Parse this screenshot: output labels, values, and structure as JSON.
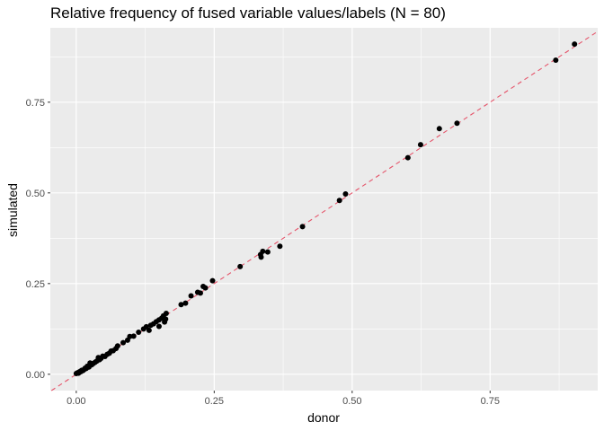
{
  "chart_data": {
    "type": "scatter",
    "title": "Relative frequency of fused variable values/labels (N = 80)",
    "xlabel": "donor",
    "ylabel": "simulated",
    "xlim": [
      -0.047,
      0.945
    ],
    "ylim": [
      -0.045,
      0.955
    ],
    "x_ticks": [
      0.0,
      0.25,
      0.5,
      0.75
    ],
    "x_tick_labels": [
      "0.00",
      "0.25",
      "0.50",
      "0.75"
    ],
    "y_ticks": [
      0.0,
      0.25,
      0.5,
      0.75
    ],
    "y_tick_labels": [
      "0.00",
      "0.25",
      "0.50",
      "0.75"
    ],
    "grid": true,
    "background": "ggplot-grey",
    "reference_line": {
      "type": "identity",
      "slope": 1,
      "intercept": 0,
      "style": "dashed",
      "color": "#e5546a"
    },
    "point_color": "#000000",
    "points": [
      {
        "x": 0.0,
        "y": 0.002
      },
      {
        "x": 0.002,
        "y": 0.004
      },
      {
        "x": 0.004,
        "y": 0.003
      },
      {
        "x": 0.005,
        "y": 0.006
      },
      {
        "x": 0.007,
        "y": 0.008
      },
      {
        "x": 0.008,
        "y": 0.007
      },
      {
        "x": 0.01,
        "y": 0.011
      },
      {
        "x": 0.012,
        "y": 0.01
      },
      {
        "x": 0.014,
        "y": 0.013
      },
      {
        "x": 0.016,
        "y": 0.017
      },
      {
        "x": 0.018,
        "y": 0.016
      },
      {
        "x": 0.02,
        "y": 0.022
      },
      {
        "x": 0.023,
        "y": 0.02
      },
      {
        "x": 0.025,
        "y": 0.031
      },
      {
        "x": 0.028,
        "y": 0.026
      },
      {
        "x": 0.031,
        "y": 0.03
      },
      {
        "x": 0.034,
        "y": 0.033
      },
      {
        "x": 0.037,
        "y": 0.036
      },
      {
        "x": 0.04,
        "y": 0.046
      },
      {
        "x": 0.042,
        "y": 0.04
      },
      {
        "x": 0.045,
        "y": 0.044
      },
      {
        "x": 0.048,
        "y": 0.05
      },
      {
        "x": 0.052,
        "y": 0.049
      },
      {
        "x": 0.056,
        "y": 0.055
      },
      {
        "x": 0.06,
        "y": 0.058
      },
      {
        "x": 0.063,
        "y": 0.064
      },
      {
        "x": 0.067,
        "y": 0.065
      },
      {
        "x": 0.072,
        "y": 0.071
      },
      {
        "x": 0.075,
        "y": 0.078
      },
      {
        "x": 0.085,
        "y": 0.087
      },
      {
        "x": 0.093,
        "y": 0.094
      },
      {
        "x": 0.097,
        "y": 0.104
      },
      {
        "x": 0.104,
        "y": 0.105
      },
      {
        "x": 0.113,
        "y": 0.116
      },
      {
        "x": 0.122,
        "y": 0.125
      },
      {
        "x": 0.127,
        "y": 0.131
      },
      {
        "x": 0.132,
        "y": 0.121
      },
      {
        "x": 0.135,
        "y": 0.135
      },
      {
        "x": 0.14,
        "y": 0.139
      },
      {
        "x": 0.145,
        "y": 0.145
      },
      {
        "x": 0.15,
        "y": 0.132
      },
      {
        "x": 0.15,
        "y": 0.15
      },
      {
        "x": 0.155,
        "y": 0.155
      },
      {
        "x": 0.158,
        "y": 0.161
      },
      {
        "x": 0.16,
        "y": 0.144
      },
      {
        "x": 0.162,
        "y": 0.152
      },
      {
        "x": 0.163,
        "y": 0.168
      },
      {
        "x": 0.19,
        "y": 0.192
      },
      {
        "x": 0.198,
        "y": 0.196
      },
      {
        "x": 0.208,
        "y": 0.216
      },
      {
        "x": 0.22,
        "y": 0.226
      },
      {
        "x": 0.225,
        "y": 0.224
      },
      {
        "x": 0.23,
        "y": 0.242
      },
      {
        "x": 0.234,
        "y": 0.238
      },
      {
        "x": 0.247,
        "y": 0.258
      },
      {
        "x": 0.297,
        "y": 0.297
      },
      {
        "x": 0.334,
        "y": 0.33
      },
      {
        "x": 0.335,
        "y": 0.323
      },
      {
        "x": 0.338,
        "y": 0.339
      },
      {
        "x": 0.347,
        "y": 0.337
      },
      {
        "x": 0.369,
        "y": 0.353
      },
      {
        "x": 0.41,
        "y": 0.407
      },
      {
        "x": 0.477,
        "y": 0.479
      },
      {
        "x": 0.488,
        "y": 0.497
      },
      {
        "x": 0.601,
        "y": 0.597
      },
      {
        "x": 0.624,
        "y": 0.633
      },
      {
        "x": 0.658,
        "y": 0.677
      },
      {
        "x": 0.69,
        "y": 0.692
      },
      {
        "x": 0.869,
        "y": 0.866
      },
      {
        "x": 0.903,
        "y": 0.91
      }
    ]
  }
}
